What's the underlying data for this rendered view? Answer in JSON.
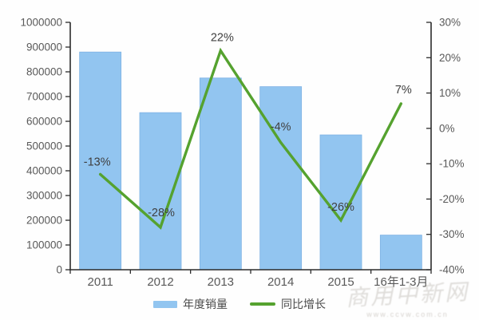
{
  "chart_data": {
    "type": "combo",
    "title": "",
    "categories": [
      "2011",
      "2012",
      "2013",
      "2014",
      "2015",
      "16年1-3月"
    ],
    "series": [
      {
        "name": "年度销量",
        "type": "bar",
        "axis": "left",
        "color": "#92C5F0",
        "border_color": "#7EB2E4",
        "values": [
          880000,
          635000,
          775000,
          740000,
          545000,
          140000
        ]
      },
      {
        "name": "同比增长",
        "type": "line",
        "axis": "right",
        "color": "#55A22F",
        "values": [
          -13,
          -28,
          22,
          -4,
          -26,
          7
        ],
        "point_labels": [
          "-13%",
          "-28%",
          "22%",
          "-4%",
          "-26%",
          "7%"
        ]
      }
    ],
    "left_axis": {
      "min": 0,
      "max": 1000000,
      "step": 100000,
      "tick_labels": [
        "1000000",
        "900000",
        "800000",
        "700000",
        "600000",
        "500000",
        "400000",
        "300000",
        "200000",
        "100000",
        "0"
      ]
    },
    "right_axis": {
      "min": -40,
      "max": 30,
      "step": 10,
      "tick_labels": [
        "30%",
        "20%",
        "10%",
        "0%",
        "-10%",
        "-20%",
        "-30%",
        "-40%"
      ]
    },
    "grid": false,
    "legend_position": "bottom",
    "axis_color": "#2b2b2b",
    "tick_label_color": "#595959",
    "data_label_color": "#3f3f3f"
  },
  "watermark": {
    "script_text": "商用中新网",
    "url_text": "www.ccvw.com.cn"
  }
}
